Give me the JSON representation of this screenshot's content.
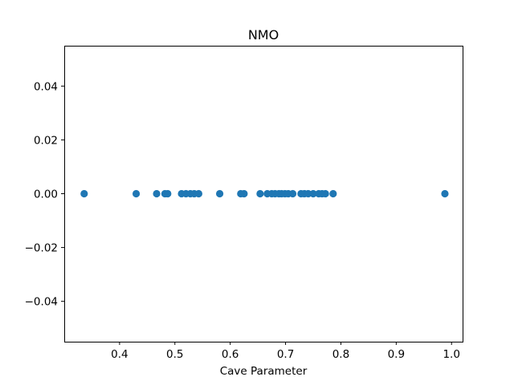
{
  "chart_data": {
    "type": "scatter",
    "title": "NMO",
    "xlabel": "Cave Parameter",
    "ylabel": "",
    "xlim": [
      0.3,
      1.02
    ],
    "ylim": [
      -0.055,
      0.055
    ],
    "grid": false,
    "x_ticks": [
      {
        "value": 0.4,
        "label": "0.4"
      },
      {
        "value": 0.5,
        "label": "0.5"
      },
      {
        "value": 0.6,
        "label": "0.6"
      },
      {
        "value": 0.7,
        "label": "0.7"
      },
      {
        "value": 0.8,
        "label": "0.8"
      },
      {
        "value": 0.9,
        "label": "0.9"
      },
      {
        "value": 1.0,
        "label": "1.0"
      }
    ],
    "y_ticks": [
      {
        "value": 0.04,
        "label": "0.04"
      },
      {
        "value": 0.02,
        "label": "0.02"
      },
      {
        "value": 0.0,
        "label": "0.00"
      },
      {
        "value": -0.02,
        "label": "−0.02"
      },
      {
        "value": -0.04,
        "label": "−0.04"
      }
    ],
    "series": [
      {
        "color": "#1f77b4",
        "points": [
          {
            "x": 0.336,
            "y": 0.0
          },
          {
            "x": 0.43,
            "y": 0.0
          },
          {
            "x": 0.467,
            "y": 0.0
          },
          {
            "x": 0.482,
            "y": 0.0
          },
          {
            "x": 0.487,
            "y": 0.0
          },
          {
            "x": 0.512,
            "y": 0.0
          },
          {
            "x": 0.52,
            "y": 0.0
          },
          {
            "x": 0.528,
            "y": 0.0
          },
          {
            "x": 0.535,
            "y": 0.0
          },
          {
            "x": 0.543,
            "y": 0.0
          },
          {
            "x": 0.581,
            "y": 0.0
          },
          {
            "x": 0.619,
            "y": 0.0
          },
          {
            "x": 0.625,
            "y": 0.0
          },
          {
            "x": 0.654,
            "y": 0.0
          },
          {
            "x": 0.667,
            "y": 0.0
          },
          {
            "x": 0.675,
            "y": 0.0
          },
          {
            "x": 0.681,
            "y": 0.0
          },
          {
            "x": 0.688,
            "y": 0.0
          },
          {
            "x": 0.693,
            "y": 0.0
          },
          {
            "x": 0.699,
            "y": 0.0
          },
          {
            "x": 0.705,
            "y": 0.0
          },
          {
            "x": 0.713,
            "y": 0.0
          },
          {
            "x": 0.728,
            "y": 0.0
          },
          {
            "x": 0.734,
            "y": 0.0
          },
          {
            "x": 0.741,
            "y": 0.0
          },
          {
            "x": 0.75,
            "y": 0.0
          },
          {
            "x": 0.76,
            "y": 0.0
          },
          {
            "x": 0.766,
            "y": 0.0
          },
          {
            "x": 0.772,
            "y": 0.0
          },
          {
            "x": 0.786,
            "y": 0.0
          },
          {
            "x": 0.988,
            "y": 0.0
          }
        ]
      }
    ]
  }
}
